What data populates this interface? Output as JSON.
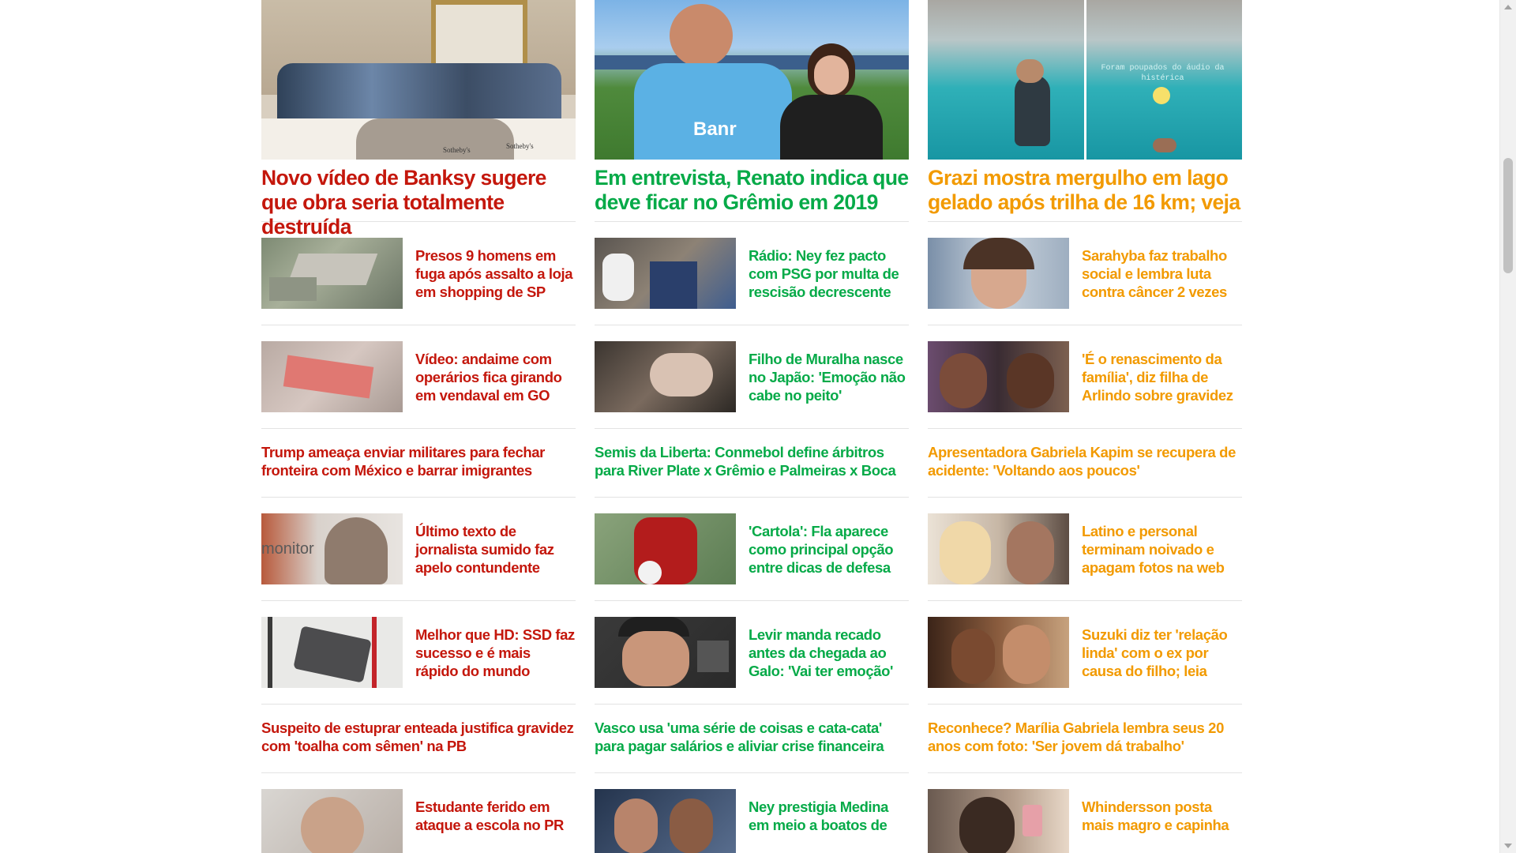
{
  "columns": [
    {
      "color": "#c4170c",
      "feature": {
        "title": "Novo vídeo de Banksy sugere que obra seria totalmente destruída",
        "image_label_1": "Sotheby's",
        "image_label_2": "Sotheby's"
      },
      "items": [
        {
          "type": "thumb",
          "title": "Presos 9 homens em fuga após assalto a loja em shopping de SP"
        },
        {
          "type": "thumb",
          "title": "Vídeo: andaime com operários fica girando em vendaval em GO"
        },
        {
          "type": "text",
          "title": "Trump ameaça enviar militares para fechar fronteira com México e barrar imigrantes"
        },
        {
          "type": "thumb",
          "title": "Último texto de jornalista sumido faz apelo contundente",
          "image_label": "monitor"
        },
        {
          "type": "thumb",
          "title": "Melhor que HD: SSD faz sucesso e é mais rápido do mundo"
        },
        {
          "type": "text",
          "title": "Suspeito de estuprar enteada justifica gravidez com 'toalha com sêmen' na PB"
        },
        {
          "type": "thumb",
          "title": "Estudante ferido em ataque a escola no PR"
        }
      ]
    },
    {
      "color": "#06aa48",
      "feature": {
        "title": "Em entrevista, Renato indica que deve ficar no Grêmio em 2019",
        "image_label_1": "Banr"
      },
      "items": [
        {
          "type": "thumb",
          "title": "Rádio: Ney fez pacto com PSG por multa de rescisão decrescente"
        },
        {
          "type": "thumb",
          "title": "Filho de Muralha nasce no Japão: 'Emoção não cabe no peito'"
        },
        {
          "type": "text",
          "title": "Semis da Liberta: Conmebol define árbitros para River Plate x Grêmio e Palmeiras x Boca"
        },
        {
          "type": "thumb",
          "title": "'Cartola': Fla aparece como principal opção entre dicas de defesa"
        },
        {
          "type": "thumb",
          "title": "Levir manda recado antes da chegada ao Galo: 'Vai ter emoção'"
        },
        {
          "type": "text",
          "title": "Vasco usa 'uma série de coisas e cata-cata' para pagar salários e aliviar crise financeira"
        },
        {
          "type": "thumb",
          "title": "Ney prestigia Medina em meio a boatos de"
        }
      ]
    },
    {
      "color": "#f29a00",
      "feature": {
        "title": "Grazi mostra mergulho em lago gelado após trilha de 16 km; veja",
        "image_label_1": "Foram poupados do áudio da histérica"
      },
      "items": [
        {
          "type": "thumb",
          "title": "Sarahyba faz trabalho social e lembra luta contra câncer 2 vezes"
        },
        {
          "type": "thumb",
          "title": "'É o renascimento da família', diz filha de Arlindo sobre gravidez"
        },
        {
          "type": "text",
          "title": "Apresentadora Gabriela Kapim se recupera de acidente: 'Voltando aos poucos'"
        },
        {
          "type": "thumb",
          "title": "Latino e personal terminam noivado e apagam fotos na web"
        },
        {
          "type": "thumb",
          "title": "Suzuki diz ter 'relação linda' com o ex por causa do filho; leia"
        },
        {
          "type": "text",
          "title": "Reconhece? Marília Gabriela lembra seus 20 anos com foto: 'Ser jovem dá trabalho'"
        },
        {
          "type": "thumb",
          "title": "Whindersson posta mais magro e capinha"
        }
      ]
    }
  ]
}
